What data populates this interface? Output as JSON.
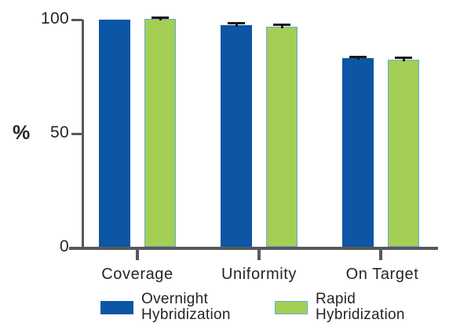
{
  "chart_data": {
    "type": "bar",
    "title": "",
    "ylabel": "%",
    "ylim": [
      0,
      100
    ],
    "ytick_labels": [
      "100",
      "50",
      "0"
    ],
    "grid": false,
    "legend_position": "bottom",
    "categories": [
      "Coverage",
      "Uniformity",
      "On Target"
    ],
    "series": [
      {
        "name": "Overnight Hybridization",
        "color": "#0c56a5",
        "values": [
          99.6,
          97.3,
          82.7
        ],
        "errors": [
          0,
          1.0,
          0.9
        ]
      },
      {
        "name": "Rapid Hybridization",
        "color": "#a5ce55",
        "edge_color": "#66a9d8",
        "values": [
          100,
          96.6,
          82.1
        ],
        "errors": [
          0.6,
          1.1,
          1.0
        ]
      }
    ],
    "error_bar_color": "#1b1918",
    "axis_color": "#58595b"
  }
}
